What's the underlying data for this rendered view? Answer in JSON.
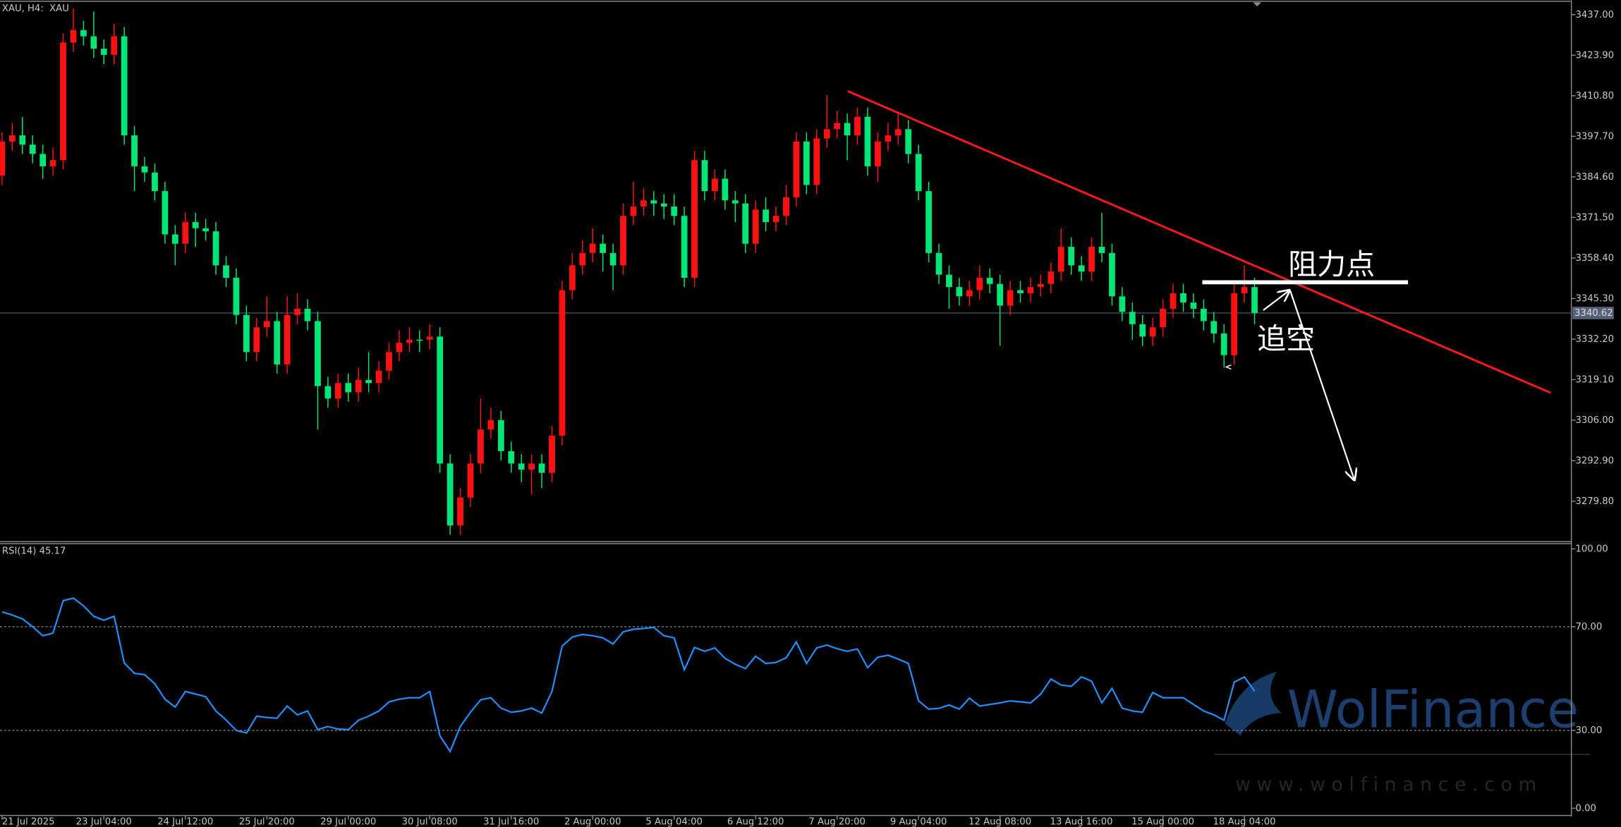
{
  "chart_data": [
    {
      "type": "candlestick",
      "title": "XAU, H4:  XAU",
      "up_color": "#ff1111",
      "down_color": "#00e676",
      "categories": [
        "21 Jul 2025",
        null,
        null,
        null,
        null,
        null,
        null,
        null,
        null,
        null,
        "23 Jul 04:00",
        null,
        null,
        null,
        null,
        null,
        null,
        null,
        "24 Jul 12:00",
        null,
        null,
        null,
        null,
        null,
        null,
        null,
        "25 Jul 20:00",
        null,
        null,
        null,
        null,
        null,
        null,
        null,
        "29 Jul 00:00",
        null,
        null,
        null,
        null,
        null,
        null,
        null,
        "30 Jul 08:00",
        null,
        null,
        null,
        null,
        null,
        null,
        null,
        "31 Jul 16:00",
        null,
        null,
        null,
        null,
        null,
        null,
        null,
        "2 Aug 00:00",
        null,
        null,
        null,
        null,
        null,
        null,
        null,
        "5 Aug 04:00",
        null,
        null,
        null,
        null,
        null,
        null,
        null,
        "6 Aug 12:00",
        null,
        null,
        null,
        null,
        null,
        null,
        null,
        "7 Aug 20:00",
        null,
        null,
        null,
        null,
        null,
        null,
        null,
        "9 Aug 04:00",
        null,
        null,
        null,
        null,
        null,
        null,
        null,
        "12 Aug 08:00",
        null,
        null,
        null,
        null,
        null,
        null,
        null,
        "13 Aug 16:00",
        null,
        null,
        null,
        null,
        null,
        null,
        null,
        "15 Aug 00:00",
        null,
        null,
        null,
        null,
        null,
        null,
        null,
        "18 Aug 04:00",
        null
      ],
      "open": [
        3385,
        3396,
        3398,
        3395,
        3392,
        3388,
        3390,
        3428,
        3432,
        3430,
        3426,
        3424,
        3430,
        3398,
        3388,
        3386,
        3380,
        3366,
        3363,
        3370,
        3368,
        3367,
        3356,
        3352,
        3340,
        3328,
        3336,
        3338,
        3324,
        3340,
        3342,
        3338,
        3317,
        3313,
        3318,
        3315,
        3319,
        3318,
        3322,
        3328,
        3331,
        3332,
        3332,
        3333,
        3292,
        3272,
        3281,
        3292,
        3303,
        3306,
        3296,
        3292,
        3290,
        3292,
        3289,
        3301,
        3348,
        3356,
        3360,
        3363,
        3360,
        3356,
        3372,
        3375,
        3377,
        3376,
        3375,
        3372,
        3352,
        3390,
        3380,
        3384,
        3377,
        3376,
        3363,
        3374,
        3370,
        3372,
        3378,
        3396,
        3382,
        3397,
        3400,
        3402,
        3398,
        3404,
        3388,
        3396,
        3398,
        3400,
        3392,
        3380,
        3360,
        3353,
        3349,
        3346,
        3348,
        3352,
        3350,
        3343,
        3348,
        3347,
        3349,
        3350,
        3354,
        3362,
        3356,
        3354,
        3362,
        3360,
        3346,
        3341,
        3337,
        3333,
        3336,
        3342,
        3347,
        3344,
        3342,
        3338,
        3334,
        3327,
        3347,
        3349
      ],
      "high": [
        3399,
        3402,
        3404,
        3398,
        3395,
        3394,
        3431,
        3439,
        3435,
        3438,
        3429,
        3434,
        3433,
        3401,
        3391,
        3389,
        3383,
        3369,
        3373,
        3373,
        3371,
        3370,
        3359,
        3355,
        3343,
        3339,
        3346,
        3341,
        3346,
        3347,
        3345,
        3341,
        3320,
        3321,
        3321,
        3323,
        3328,
        3325,
        3331,
        3335,
        3336,
        3335,
        3337,
        3336,
        3295,
        3284,
        3295,
        3313,
        3310,
        3309,
        3299,
        3295,
        3295,
        3295,
        3304,
        3351,
        3360,
        3364,
        3368,
        3366,
        3363,
        3376,
        3383,
        3381,
        3380,
        3379,
        3379,
        3375,
        3393,
        3393,
        3387,
        3387,
        3380,
        3379,
        3377,
        3378,
        3375,
        3382,
        3399,
        3399,
        3400,
        3411,
        3406,
        3405,
        3407,
        3407,
        3399,
        3402,
        3405,
        3403,
        3395,
        3383,
        3363,
        3356,
        3352,
        3351,
        3356,
        3355,
        3353,
        3351,
        3351,
        3352,
        3353,
        3357,
        3368,
        3365,
        3359,
        3365,
        3373,
        3363,
        3349,
        3344,
        3340,
        3339,
        3345,
        3350,
        3350,
        3347,
        3345,
        3341,
        3337,
        3350,
        3356,
        3352
      ],
      "low": [
        3382,
        3393,
        3392,
        3389,
        3384,
        3385,
        3387,
        3425,
        3427,
        3423,
        3421,
        3421,
        3395,
        3380,
        3383,
        3377,
        3363,
        3356,
        3360,
        3362,
        3364,
        3353,
        3349,
        3337,
        3325,
        3325,
        3333,
        3321,
        3321,
        3337,
        3335,
        3303,
        3310,
        3310,
        3312,
        3312,
        3315,
        3315,
        3319,
        3325,
        3328,
        3328,
        3329,
        3289,
        3269,
        3269,
        3278,
        3289,
        3300,
        3293,
        3289,
        3286,
        3282,
        3284,
        3286,
        3298,
        3345,
        3353,
        3357,
        3354,
        3348,
        3353,
        3369,
        3372,
        3372,
        3371,
        3369,
        3349,
        3349,
        3377,
        3377,
        3374,
        3370,
        3360,
        3360,
        3367,
        3367,
        3369,
        3375,
        3379,
        3379,
        3394,
        3397,
        3390,
        3395,
        3385,
        3383,
        3393,
        3395,
        3389,
        3377,
        3357,
        3350,
        3342,
        3343,
        3343,
        3345,
        3347,
        3330,
        3340,
        3344,
        3344,
        3346,
        3347,
        3351,
        3353,
        3351,
        3351,
        3357,
        3343,
        3338,
        3332,
        3330,
        3330,
        3333,
        3339,
        3341,
        3339,
        3335,
        3331,
        3323,
        3324,
        3344,
        3337
      ],
      "close": [
        3396,
        3398,
        3395,
        3392,
        3388,
        3390,
        3428,
        3432,
        3430,
        3426,
        3424,
        3430,
        3398,
        3388,
        3386,
        3380,
        3366,
        3363,
        3370,
        3368,
        3367,
        3356,
        3352,
        3340,
        3328,
        3336,
        3338,
        3324,
        3340,
        3342,
        3338,
        3317,
        3313,
        3318,
        3315,
        3319,
        3318,
        3322,
        3328,
        3331,
        3332,
        3332,
        3333,
        3292,
        3272,
        3281,
        3292,
        3303,
        3306,
        3296,
        3292,
        3290,
        3292,
        3289,
        3301,
        3348,
        3356,
        3360,
        3363,
        3360,
        3356,
        3372,
        3375,
        3377,
        3376,
        3375,
        3372,
        3352,
        3390,
        3380,
        3384,
        3377,
        3376,
        3363,
        3374,
        3370,
        3372,
        3378,
        3396,
        3382,
        3397,
        3400,
        3402,
        3398,
        3404,
        3388,
        3396,
        3398,
        3400,
        3392,
        3380,
        3360,
        3353,
        3349,
        3346,
        3348,
        3352,
        3350,
        3343,
        3348,
        3347,
        3349,
        3350,
        3354,
        3362,
        3356,
        3354,
        3362,
        3360,
        3346,
        3341,
        3337,
        3333,
        3336,
        3342,
        3347,
        3344,
        3342,
        3338,
        3334,
        3327,
        3347,
        3349,
        3340.62
      ],
      "ylim": [
        3267.1,
        3441
      ],
      "yticks": [
        {
          "value": 3437,
          "label": "3437.00"
        },
        {
          "value": 3423.9,
          "label": "3423.90"
        },
        {
          "value": 3410.8,
          "label": "3410.80"
        },
        {
          "value": 3397.7,
          "label": "3397.70"
        },
        {
          "value": 3384.6,
          "label": "3384.60"
        },
        {
          "value": 3371.5,
          "label": "3371.50"
        },
        {
          "value": 3358.4,
          "label": "3358.40"
        },
        {
          "value": 3345.3,
          "label": "3345.30"
        },
        {
          "value": 3332.2,
          "label": "3332.20"
        },
        {
          "value": 3319.1,
          "label": "3319.10"
        },
        {
          "value": 3306,
          "label": "3306.00"
        },
        {
          "value": 3292.9,
          "label": "3292.90"
        },
        {
          "value": 3279.8,
          "label": "3279.80"
        }
      ],
      "annotations": [
        "阻力点",
        "追空"
      ]
    },
    {
      "type": "line",
      "title": "RSI(14) 45.17",
      "color": "#1e90ff",
      "values": [
        75.7,
        74.5,
        73,
        70,
        66.5,
        67.5,
        80,
        81,
        78,
        74,
        72.5,
        74,
        56,
        52,
        51.5,
        48,
        42,
        39,
        45,
        44,
        43,
        37.5,
        34,
        30,
        29,
        35.5,
        35,
        34.7,
        39.4,
        36,
        37.5,
        30.3,
        31.5,
        30.5,
        30.3,
        33.9,
        35.5,
        37.5,
        41,
        42,
        42.6,
        42.6,
        45,
        27.9,
        21.9,
        31.5,
        37,
        41.8,
        42.6,
        38.6,
        37,
        37.5,
        38.6,
        36.7,
        45,
        62.5,
        66,
        67,
        66.5,
        65.7,
        63.3,
        68,
        69,
        69.3,
        69.7,
        66.5,
        65.7,
        53.4,
        62,
        60.5,
        61.8,
        57.8,
        55.5,
        53.8,
        58.6,
        55.8,
        56.2,
        58,
        64.1,
        55.8,
        61.8,
        62.9,
        61.5,
        60.5,
        61.4,
        54.2,
        58.2,
        59,
        57.5,
        55.8,
        41.4,
        38.2,
        38.5,
        39.8,
        38.2,
        42.4,
        39.4,
        40,
        40.6,
        41.4,
        41,
        40.6,
        44,
        49.8,
        47.5,
        47,
        50.6,
        49,
        40.6,
        46.2,
        38.6,
        37.5,
        37,
        44.6,
        42.6,
        42.6,
        42.6,
        40,
        37.5,
        36,
        33.9,
        48.6,
        50.6,
        45.17
      ],
      "ylim": [
        0,
        100
      ],
      "yticks": [
        {
          "value": 100,
          "label": "100.00"
        },
        {
          "value": 70,
          "label": "70.00"
        },
        {
          "value": 30,
          "label": "30.00"
        },
        {
          "value": 0,
          "label": "0.00"
        }
      ]
    }
  ],
  "watermark": {
    "brand": "WolFinance",
    "url": "www.wolfinance.com"
  }
}
